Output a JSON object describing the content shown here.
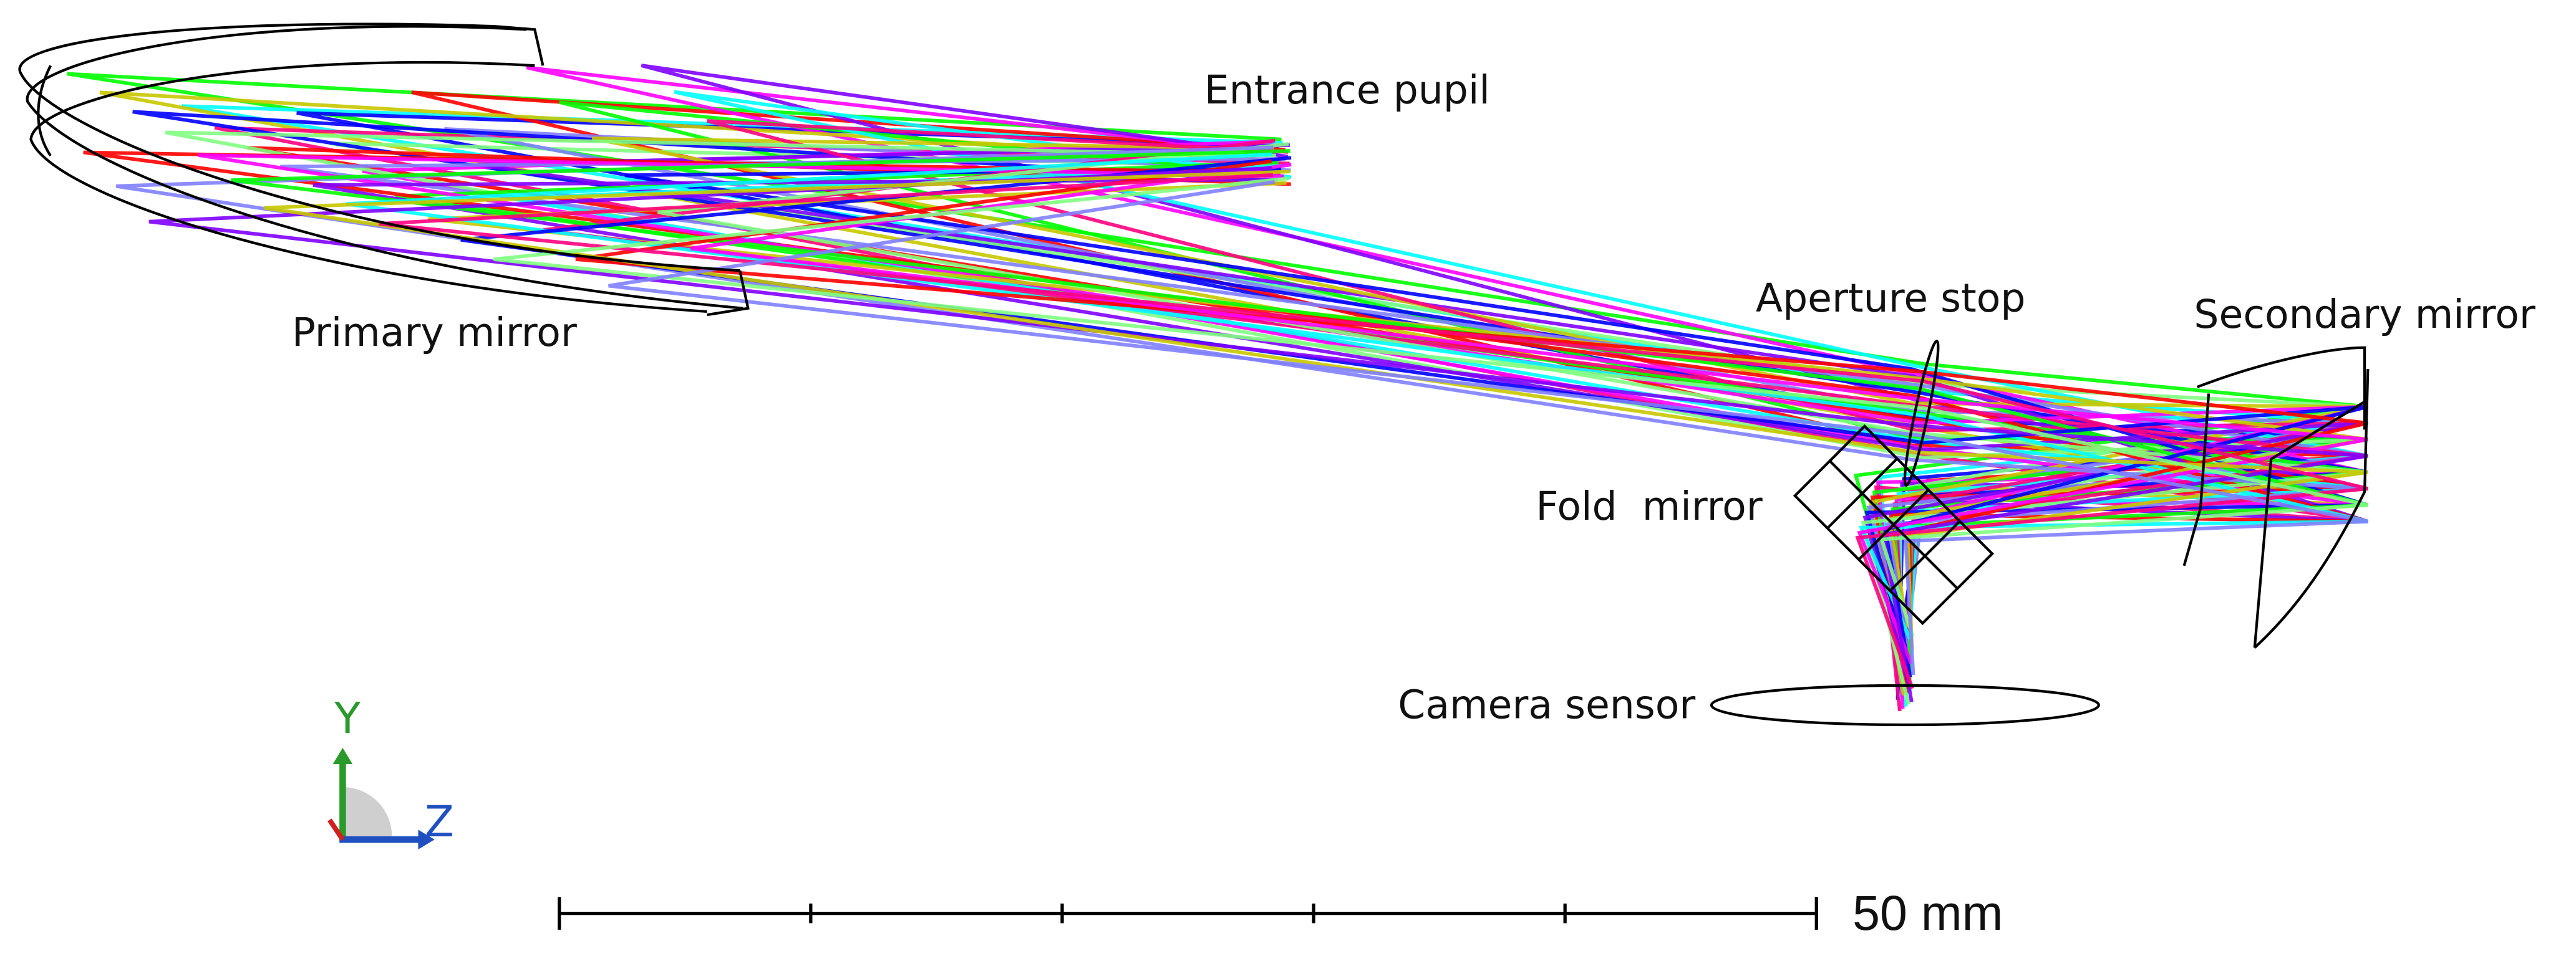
{
  "labels": {
    "entrance_pupil": "Entrance pupil",
    "primary_mirror": "Primary mirror",
    "aperture_stop": "Aperture stop",
    "secondary_mirror": "Secondary mirror",
    "fold_mirror": "Fold  mirror",
    "camera_sensor": "Camera sensor"
  },
  "axes": {
    "y": "Y",
    "z": "Z"
  },
  "scale_bar": {
    "label": "50 mm"
  }
}
